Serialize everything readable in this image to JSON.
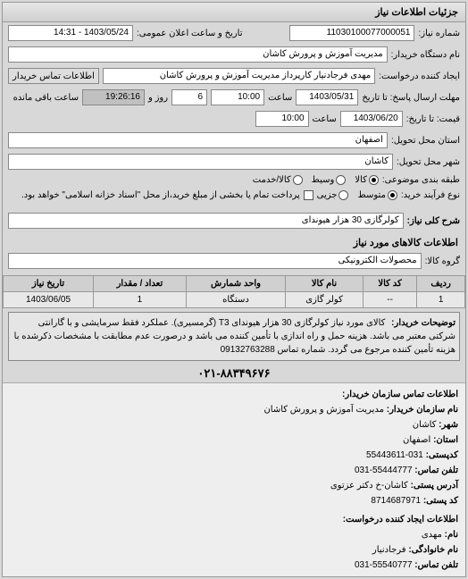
{
  "panel_title": "جزئیات اطلاعات نیاز",
  "labels": {
    "need_no": "شماره نیاز:",
    "announce_datetime": "تاریخ و ساعت اعلان عمومی:",
    "buyer_device": "نام دستگاه خریدار:",
    "requester": "ایجاد کننده درخواست:",
    "contact_btn": "اطلاعات تماس خریدار",
    "deadline": "مهلت ارسال پاسخ: تا تاریخ",
    "time": "ساعت",
    "remaining": "روز و",
    "remaining2": "ساعت باقی مانده",
    "validity": "قیمت: تا تاریخ:",
    "province": "استان محل تحویل:",
    "city": "شهر محل تحویل:",
    "category": "طبقه بندی موضوعی:",
    "process_type": "نوع فرآیند خرید:",
    "process_note": "پرداخت تمام یا بخشی از مبلغ خرید،از محل \"اسناد خزانه اسلامی\" خواهد بود.",
    "need_title": "شرح کلی نیاز:",
    "goods_section": "اطلاعات کالاهای مورد نیاز",
    "goods_group": "گروه کالا:",
    "buyer_desc": "توضیحات خریدار:",
    "org_section": "اطلاعات تماس سازمان خریدار:",
    "org_name_l": "نام سازمان خریدار:",
    "city_l": "شهر:",
    "province_l": "استان:",
    "postcode_l": "کدپستی:",
    "phone_l": "تلفن تماس:",
    "address_l": "آدرس پستی:",
    "postbox_l": "کد پستی:",
    "creator_section": "اطلاعات ایجاد کننده درخواست:",
    "fname_l": "نام:",
    "lname_l": "نام خانوادگی:",
    "phone2_l": "تلفن تماس:"
  },
  "values": {
    "need_no": "11030100077000051",
    "announce_datetime": "1403/05/24 - 14:31",
    "buyer_device": "مدیریت آموزش و پرورش کاشان",
    "requester": "مهدی فرجادنیار کارپرداز مدیریت آموزش و پرورش کاشان",
    "deadline_date": "1403/05/31",
    "deadline_time": "10:00",
    "remaining_days": "6",
    "remaining_time": "19:26:16",
    "validity_date": "1403/06/20",
    "validity_time": "10:00",
    "province": "اصفهان",
    "city": "کاشان",
    "need_title": "کولرگازی 30 هزار هیوندای",
    "goods_group": "محصولات الکترونیکی",
    "buyer_desc": "کالای مورد نیاز کولرگازی 30 هزار هیوندای T3 (گرمسیری). عملکرد فقط سرمایشی و با گارانتی شرکتی معتبر می باشد. هزینه حمل و راه اندازی با تأمین کننده می باشد و درصورت عدم مطابقت با مشخصات ذکرشده با هزینه تأمین کننده مرجوع می گردد. شماره تماس 09132763288",
    "phone_center": "۰۲۱-۸۸۳۴۹۶۷۶",
    "org_name": "مدیریت آموزش و پرورش کاشان",
    "org_city": "کاشان",
    "org_province": "اصفهان",
    "org_postcode": "031-55443611",
    "org_phone": "55444777-031",
    "org_address": "کاشان-خ دکتر عزتوی",
    "org_postbox": "8714687971",
    "fname": "مهدی",
    "lname": "فرجادنیار",
    "phone2": "55540777-031"
  },
  "radios": {
    "category": [
      {
        "label": "کالا",
        "checked": true
      },
      {
        "label": "وسیط",
        "checked": false
      },
      {
        "label": "کالا/خدمت",
        "checked": false
      }
    ],
    "process": [
      {
        "label": "متوسط",
        "checked": true
      },
      {
        "label": "جزیی",
        "checked": false
      }
    ]
  },
  "table": {
    "headers": [
      "ردیف",
      "کد کالا",
      "نام کالا",
      "واحد شمارش",
      "تعداد / مقدار",
      "تاریخ نیاز"
    ],
    "rows": [
      [
        "1",
        "--",
        "کولر گازی",
        "دستگاه",
        "1",
        "1403/06/05"
      ]
    ]
  }
}
